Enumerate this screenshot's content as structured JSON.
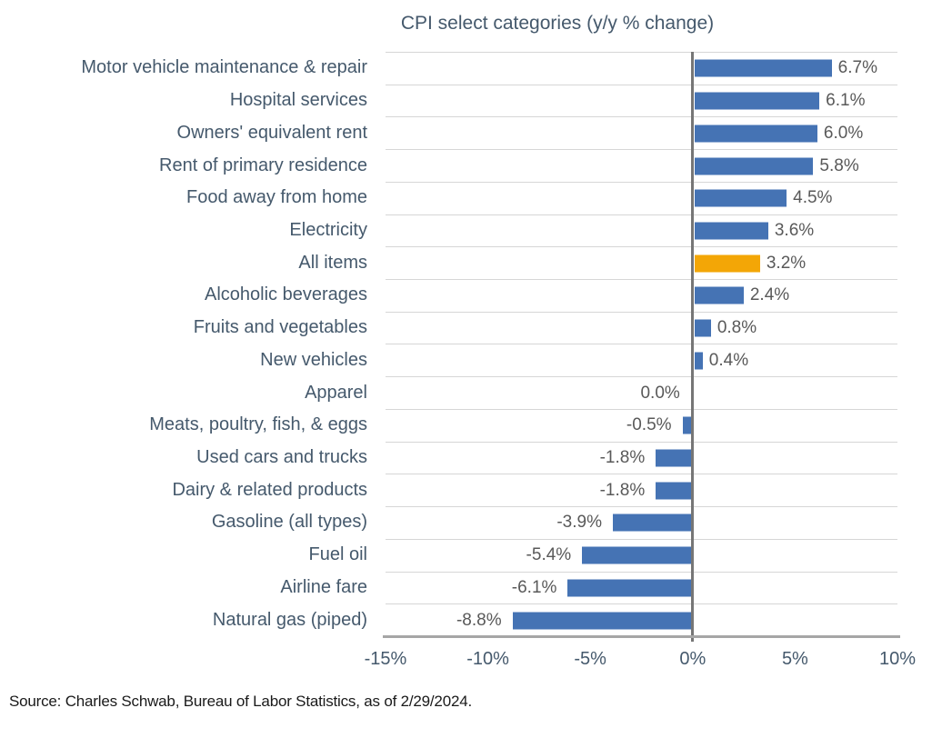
{
  "chart_data": {
    "type": "bar",
    "orientation": "horizontal",
    "title": "CPI select categories (y/y % change)",
    "categories": [
      "Motor vehicle maintenance & repair",
      "Hospital services",
      "Owners' equivalent rent",
      "Rent of primary residence",
      "Food away from home",
      "Electricity",
      "All items",
      "Alcoholic beverages",
      "Fruits and vegetables",
      "New vehicles",
      "Apparel",
      "Meats, poultry, fish, & eggs",
      "Used cars and trucks",
      "Dairy & related products",
      "Gasoline (all types)",
      "Fuel oil",
      "Airline fare",
      "Natural gas (piped)"
    ],
    "values": [
      6.7,
      6.1,
      6.0,
      5.8,
      4.5,
      3.6,
      3.2,
      2.4,
      0.8,
      0.4,
      0.0,
      -0.5,
      -1.8,
      -1.8,
      -3.9,
      -5.4,
      -6.1,
      -8.8
    ],
    "value_labels": [
      "6.7%",
      "6.1%",
      "6.0%",
      "5.8%",
      "4.5%",
      "3.6%",
      "3.2%",
      "2.4%",
      "0.8%",
      "0.4%",
      "0.0%",
      "-0.5%",
      "-1.8%",
      "-1.8%",
      "-3.9%",
      "-5.4%",
      "-6.1%",
      "-8.8%"
    ],
    "highlight_index": 6,
    "highlight_category": "All items",
    "x_ticks": [
      "-15%",
      "-10%",
      "-5%",
      "0%",
      "5%",
      "10%"
    ],
    "x_min": -15,
    "x_max": 10,
    "grid": true,
    "legend": "none",
    "colors": {
      "bar": "#4573B4",
      "highlight": "#F3A606",
      "grid": "#D6D6D6",
      "zero_line": "#767676",
      "axis_line": "#A6A6A6",
      "text": "#45596C",
      "value_text": "#595959",
      "source_text": "#1A1A1A"
    },
    "source": "Source: Charles Schwab, Bureau of Labor Statistics, as of 2/29/2024."
  }
}
